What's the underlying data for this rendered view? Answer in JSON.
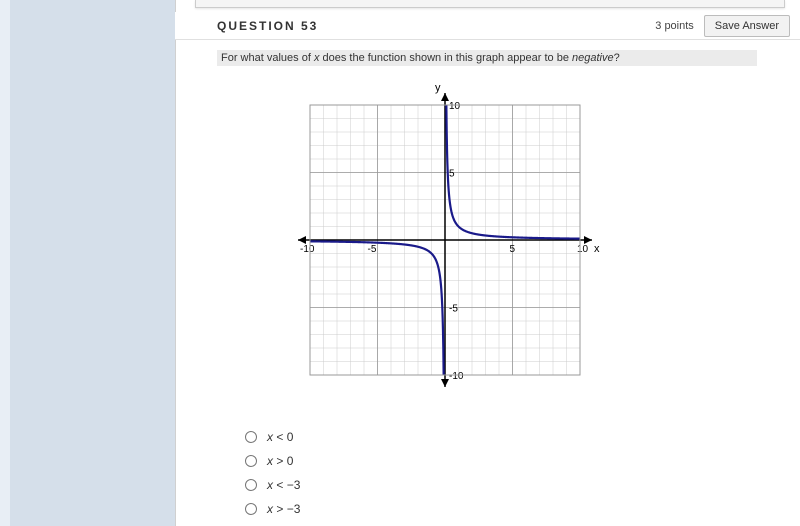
{
  "header": {
    "title": "QUESTION 53",
    "points_label": "3 points",
    "save_label": "Save Answer"
  },
  "question": {
    "prefix": "For what values of ",
    "var": "x",
    "mid": " does the function shown in this graph appear to be ",
    "emword": "negative",
    "suffix": "?"
  },
  "chart": {
    "type": "line",
    "x_axis": {
      "label": "x",
      "min": -10,
      "max": 10,
      "tick_step": 1,
      "major_step": 5
    },
    "y_axis": {
      "label": "y",
      "min": -10,
      "max": 10,
      "tick_step": 1,
      "major_step": 5
    },
    "tick_labels_x": [
      "-10",
      "-5",
      "5",
      "10"
    ],
    "tick_labels_y": [
      "-10",
      "-5",
      "5",
      "10"
    ],
    "grid_color": "#cccccc",
    "major_grid_color": "#999999",
    "axis_color": "#000000",
    "background_color": "#ffffff",
    "curve_color": "#1a1a8a",
    "curve_width": 2.2,
    "label_fontsize": 11,
    "tick_fontsize": 10,
    "series": {
      "description": "y = 1/x style rational function",
      "left_branch": [
        [
          -10,
          -0.1
        ],
        [
          -8,
          -0.125
        ],
        [
          -6,
          -0.167
        ],
        [
          -4,
          -0.25
        ],
        [
          -3,
          -0.333
        ],
        [
          -2,
          -0.5
        ],
        [
          -1.5,
          -0.667
        ],
        [
          -1.2,
          -0.833
        ],
        [
          -1,
          -1
        ],
        [
          -0.8,
          -1.25
        ],
        [
          -0.6,
          -1.667
        ],
        [
          -0.5,
          -2
        ],
        [
          -0.4,
          -2.5
        ],
        [
          -0.3,
          -3.333
        ],
        [
          -0.25,
          -4
        ],
        [
          -0.2,
          -5
        ],
        [
          -0.15,
          -6.667
        ],
        [
          -0.12,
          -8.333
        ],
        [
          -0.1,
          -10
        ]
      ],
      "right_branch": [
        [
          0.1,
          10
        ],
        [
          0.12,
          8.333
        ],
        [
          0.15,
          6.667
        ],
        [
          0.2,
          5
        ],
        [
          0.25,
          4
        ],
        [
          0.3,
          3.333
        ],
        [
          0.4,
          2.5
        ],
        [
          0.5,
          2
        ],
        [
          0.6,
          1.667
        ],
        [
          0.8,
          1.25
        ],
        [
          1,
          1
        ],
        [
          1.2,
          0.833
        ],
        [
          1.5,
          0.667
        ],
        [
          2,
          0.5
        ],
        [
          3,
          0.333
        ],
        [
          4,
          0.25
        ],
        [
          6,
          0.167
        ],
        [
          8,
          0.125
        ],
        [
          10,
          0.1
        ]
      ]
    }
  },
  "options": [
    {
      "var": "x",
      "op": "<",
      "val": "0"
    },
    {
      "var": "x",
      "op": ">",
      "val": "0"
    },
    {
      "var": "x",
      "op": "<",
      "val": "−3"
    },
    {
      "var": "x",
      "op": ">",
      "val": "−3"
    }
  ]
}
